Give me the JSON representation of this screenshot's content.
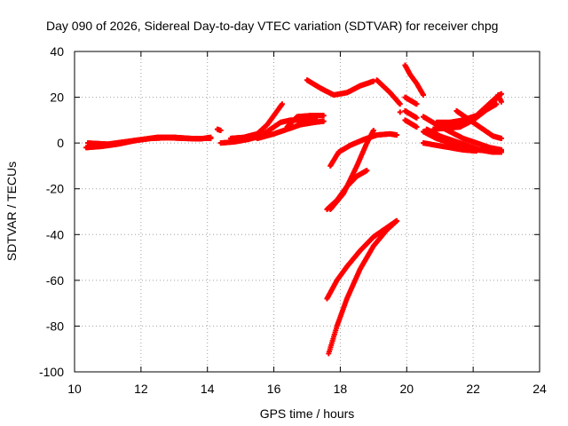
{
  "chart_data": {
    "type": "scatter",
    "title": "Day 090 of 2026, Sidereal Day-to-day VTEC variation (SDTVAR) for receiver chpg",
    "xlabel": "GPS time / hours",
    "ylabel": "SDTVAR / TECUs",
    "xlim": [
      10,
      24
    ],
    "ylim": [
      -100,
      40
    ],
    "xticks": [
      10,
      12,
      14,
      16,
      18,
      20,
      22,
      24
    ],
    "yticks": [
      -100,
      -80,
      -60,
      -40,
      -20,
      0,
      20,
      40
    ],
    "grid": true,
    "marker": "+",
    "color": "#ff0000",
    "series": [
      {
        "name": "arc01",
        "points": [
          [
            10.35,
            -2
          ],
          [
            10.8,
            -1.5
          ],
          [
            11.3,
            -0.5
          ],
          [
            11.8,
            1
          ],
          [
            12.3,
            2
          ],
          [
            12.8,
            2.3
          ],
          [
            13.3,
            2
          ],
          [
            13.8,
            1.8
          ],
          [
            14.1,
            2.5
          ]
        ]
      },
      {
        "name": "arc02",
        "points": [
          [
            10.4,
            0
          ],
          [
            11,
            -0.5
          ],
          [
            11.5,
            0.5
          ],
          [
            12,
            1.5
          ],
          [
            12.5,
            2.5
          ],
          [
            13,
            2.5
          ],
          [
            13.5,
            2
          ],
          [
            14.1,
            2
          ]
        ]
      },
      {
        "name": "arc03",
        "points": [
          [
            14.3,
            6
          ],
          [
            14.4,
            5.5
          ]
        ]
      },
      {
        "name": "arc04",
        "points": [
          [
            14.4,
            0
          ],
          [
            14.8,
            0.5
          ],
          [
            15.2,
            1.5
          ],
          [
            15.6,
            3
          ],
          [
            15.9,
            6
          ],
          [
            16.2,
            9
          ],
          [
            16.5,
            10
          ],
          [
            16.9,
            10
          ],
          [
            17.3,
            11.5
          ]
        ]
      },
      {
        "name": "arc05",
        "points": [
          [
            14.7,
            2
          ],
          [
            15.1,
            2.5
          ],
          [
            15.5,
            4
          ],
          [
            15.8,
            8
          ],
          [
            16.05,
            13
          ],
          [
            16.25,
            17
          ]
        ]
      },
      {
        "name": "arc06",
        "points": [
          [
            15.5,
            2
          ],
          [
            16,
            4
          ],
          [
            16.4,
            6
          ],
          [
            16.8,
            8
          ],
          [
            17.2,
            9
          ],
          [
            17.5,
            9.5
          ]
        ]
      },
      {
        "name": "arc07",
        "points": [
          [
            16.4,
            7
          ],
          [
            16.7,
            11.5
          ],
          [
            17.1,
            12
          ],
          [
            17.5,
            12
          ]
        ]
      },
      {
        "name": "arc08",
        "points": [
          [
            17.0,
            27.5
          ],
          [
            17.4,
            24
          ],
          [
            17.8,
            21
          ],
          [
            18.2,
            22
          ],
          [
            18.6,
            25
          ],
          [
            19.0,
            27
          ]
        ]
      },
      {
        "name": "arc09",
        "points": [
          [
            19.1,
            27.5
          ],
          [
            19.5,
            22
          ],
          [
            19.8,
            17
          ]
        ]
      },
      {
        "name": "arc10",
        "points": [
          [
            17.7,
            -10
          ],
          [
            17.95,
            -4
          ],
          [
            18.3,
            -1
          ],
          [
            18.7,
            1.5
          ],
          [
            19.1,
            3.5
          ],
          [
            19.5,
            4
          ],
          [
            19.7,
            3.5
          ]
        ]
      },
      {
        "name": "arc11",
        "points": [
          [
            17.6,
            -29
          ],
          [
            17.9,
            -25
          ],
          [
            18.2,
            -19
          ],
          [
            18.5,
            -14.5
          ],
          [
            18.8,
            -12
          ]
        ]
      },
      {
        "name": "arc12",
        "points": [
          [
            17.7,
            -29
          ],
          [
            18.1,
            -22
          ],
          [
            18.5,
            -10
          ],
          [
            18.8,
            0
          ],
          [
            19.0,
            5.5
          ]
        ]
      },
      {
        "name": "arc13",
        "points": [
          [
            17.6,
            -68
          ],
          [
            17.9,
            -60
          ],
          [
            18.2,
            -54
          ],
          [
            18.6,
            -47
          ],
          [
            19.0,
            -41
          ],
          [
            19.4,
            -37
          ],
          [
            19.7,
            -34
          ]
        ]
      },
      {
        "name": "arc14",
        "points": [
          [
            17.65,
            -92
          ],
          [
            17.9,
            -80
          ],
          [
            18.2,
            -68
          ],
          [
            18.6,
            -55
          ],
          [
            19.0,
            -45
          ],
          [
            19.4,
            -38
          ],
          [
            19.7,
            -34
          ]
        ]
      },
      {
        "name": "arc15",
        "points": [
          [
            19.8,
            13.5
          ]
        ]
      },
      {
        "name": "arc16",
        "points": [
          [
            19.95,
            34
          ],
          [
            20.1,
            30
          ],
          [
            20.3,
            26
          ],
          [
            20.5,
            21
          ]
        ]
      },
      {
        "name": "arc17",
        "points": [
          [
            19.95,
            20
          ],
          [
            20.3,
            17
          ]
        ]
      },
      {
        "name": "arc18",
        "points": [
          [
            19.95,
            14
          ],
          [
            20.3,
            11
          ]
        ]
      },
      {
        "name": "arc19",
        "points": [
          [
            19.95,
            10
          ],
          [
            20.3,
            7
          ]
        ]
      },
      {
        "name": "arc20",
        "points": [
          [
            20.5,
            11.5
          ],
          [
            20.9,
            8
          ],
          [
            21.3,
            5
          ],
          [
            21.7,
            2
          ],
          [
            22.1,
            0
          ],
          [
            22.5,
            -2
          ],
          [
            22.85,
            -3
          ]
        ]
      },
      {
        "name": "arc21",
        "points": [
          [
            20.6,
            6
          ],
          [
            21.0,
            3
          ],
          [
            21.4,
            1
          ],
          [
            21.8,
            -1
          ],
          [
            22.2,
            -3
          ],
          [
            22.6,
            -4
          ],
          [
            22.85,
            -4
          ]
        ]
      },
      {
        "name": "arc22",
        "points": [
          [
            20.5,
            5
          ],
          [
            20.9,
            2
          ],
          [
            21.3,
            0
          ],
          [
            21.7,
            -2
          ],
          [
            22.1,
            -3
          ],
          [
            22.5,
            -3.5
          ],
          [
            22.85,
            -3.5
          ]
        ]
      },
      {
        "name": "arc23",
        "points": [
          [
            20.7,
            4
          ],
          [
            21.1,
            8
          ],
          [
            21.5,
            8.5
          ],
          [
            21.9,
            10
          ],
          [
            22.3,
            14
          ],
          [
            22.6,
            18
          ],
          [
            22.8,
            21
          ]
        ]
      },
      {
        "name": "arc24",
        "points": [
          [
            20.9,
            9
          ],
          [
            21.3,
            9
          ],
          [
            21.7,
            10
          ],
          [
            22.1,
            12
          ],
          [
            22.4,
            16
          ],
          [
            22.7,
            20
          ],
          [
            22.85,
            21.5
          ]
        ]
      },
      {
        "name": "arc25",
        "points": [
          [
            20.8,
            6
          ],
          [
            21.2,
            6.5
          ],
          [
            21.6,
            7
          ],
          [
            22.0,
            10
          ],
          [
            22.4,
            14.5
          ],
          [
            22.7,
            17
          ]
        ]
      },
      {
        "name": "arc26",
        "points": [
          [
            21.5,
            14
          ],
          [
            21.9,
            10
          ],
          [
            22.3,
            6
          ],
          [
            22.6,
            3
          ],
          [
            22.85,
            2
          ]
        ]
      },
      {
        "name": "arc27",
        "points": [
          [
            20.5,
            0
          ],
          [
            20.9,
            -1
          ],
          [
            21.3,
            -2
          ],
          [
            21.7,
            -3
          ],
          [
            22.1,
            -3.5
          ]
        ]
      },
      {
        "name": "arc28",
        "points": [
          [
            22.75,
            21
          ],
          [
            22.85,
            18
          ]
        ]
      }
    ]
  }
}
